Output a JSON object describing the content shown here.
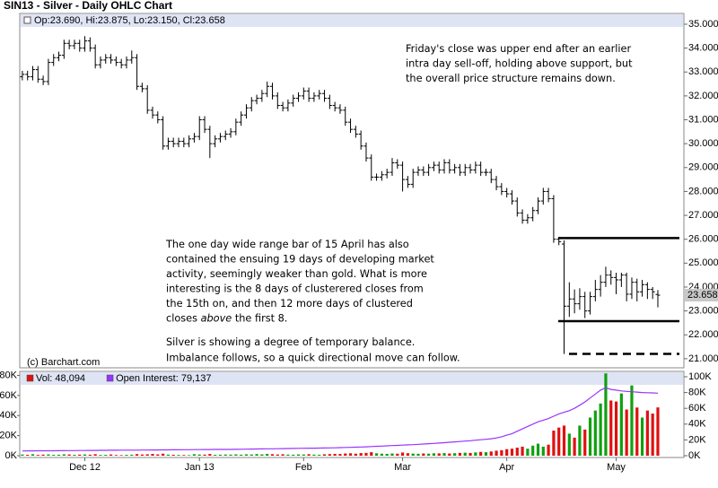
{
  "chart_data": [
    {
      "type": "ohlc",
      "title": "SIN13 - Silver - Daily OHLC Chart",
      "header_text": "Op:23.690, Hi:23.875, Lo:23.150, Cl:23.658",
      "credit": "(c) Barchart.com",
      "color": "#000000",
      "xlim": [
        -0.5,
        127
      ],
      "ylim": [
        20.62,
        35.45
      ],
      "yticks": [
        {
          "value": 21,
          "label": "21.000"
        },
        {
          "value": 22,
          "label": "22.000"
        },
        {
          "value": 23,
          "label": "23.000"
        },
        {
          "value": 24,
          "label": "24.000"
        },
        {
          "value": 25,
          "label": "25.000"
        },
        {
          "value": 26,
          "label": "26.000"
        },
        {
          "value": 27,
          "label": "27.000"
        },
        {
          "value": 28,
          "label": "28.000"
        },
        {
          "value": 29,
          "label": "29.000"
        },
        {
          "value": 30,
          "label": "30.000"
        },
        {
          "value": 31,
          "label": "31.000"
        },
        {
          "value": 32,
          "label": "32.000"
        },
        {
          "value": 33,
          "label": "33.000"
        },
        {
          "value": 34,
          "label": "34.000"
        },
        {
          "value": 35,
          "label": "35.000"
        }
      ],
      "grid": false,
      "open": [
        32.8,
        32.9,
        32.8,
        33.1,
        32.7,
        32.6,
        33.4,
        33.6,
        33.7,
        34.2,
        34.1,
        34.2,
        34.0,
        34.3,
        34.0,
        33.3,
        33.5,
        33.6,
        33.5,
        33.4,
        33.3,
        33.5,
        33.6,
        32.4,
        32.3,
        31.4,
        31.2,
        31.0,
        29.9,
        30.1,
        30.0,
        30.1,
        30.0,
        30.2,
        30.3,
        31.0,
        30.6,
        30.0,
        30.2,
        30.3,
        30.4,
        30.5,
        30.9,
        31.2,
        31.5,
        31.8,
        31.9,
        32.1,
        32.4,
        32.0,
        31.6,
        31.5,
        31.7,
        31.9,
        32.0,
        32.2,
        31.9,
        32.0,
        32.1,
        31.9,
        31.6,
        31.5,
        31.4,
        30.9,
        30.6,
        30.4,
        29.9,
        29.4,
        28.6,
        28.6,
        28.7,
        28.8,
        29.2,
        29.1,
        28.5,
        28.3,
        28.8,
        28.9,
        28.8,
        29.0,
        29.1,
        28.9,
        29.2,
        28.9,
        29.0,
        28.8,
        29.0,
        28.9,
        29.1,
        28.8,
        28.8,
        28.5,
        28.2,
        28.0,
        27.9,
        27.6,
        27.1,
        26.8,
        26.9,
        27.2,
        27.6,
        28.0,
        27.7,
        26.0,
        25.8,
        23.2,
        23.5,
        23.3,
        23.6,
        23.0,
        23.6,
        23.9,
        24.2,
        24.5,
        24.4,
        24.3,
        24.5,
        23.7,
        24.2,
        23.8,
        24.1,
        23.9,
        23.69
      ],
      "high": [
        33.05,
        33.05,
        33.25,
        33.25,
        32.85,
        33.55,
        33.75,
        33.85,
        34.35,
        34.35,
        34.35,
        34.35,
        34.5,
        34.45,
        34.15,
        33.65,
        33.75,
        33.75,
        33.65,
        33.55,
        33.65,
        33.9,
        33.75,
        32.55,
        32.45,
        31.55,
        31.35,
        31.15,
        30.25,
        30.25,
        30.25,
        30.25,
        30.35,
        30.45,
        31.15,
        31.15,
        30.75,
        30.35,
        30.45,
        30.55,
        30.65,
        31.05,
        31.35,
        31.65,
        31.95,
        32.05,
        32.25,
        32.6,
        32.55,
        32.15,
        31.75,
        31.85,
        32.05,
        32.15,
        32.35,
        32.35,
        32.15,
        32.25,
        32.25,
        32.05,
        31.75,
        31.65,
        31.55,
        31.05,
        30.75,
        30.55,
        30.05,
        29.55,
        28.75,
        28.85,
        28.95,
        29.4,
        29.35,
        29.25,
        28.65,
        28.95,
        29.05,
        29.05,
        29.15,
        29.25,
        29.25,
        29.35,
        29.35,
        29.15,
        29.15,
        29.15,
        29.15,
        29.25,
        29.25,
        28.95,
        28.95,
        28.65,
        28.35,
        28.15,
        28.05,
        27.75,
        27.25,
        27.05,
        27.35,
        27.75,
        28.15,
        28.15,
        27.85,
        26.1,
        25.95,
        24.2,
        23.9,
        23.95,
        23.8,
        23.8,
        24.3,
        24.5,
        24.85,
        24.7,
        24.6,
        24.6,
        24.6,
        24.4,
        24.35,
        24.3,
        24.2,
        24.0,
        23.875
      ],
      "low": [
        32.65,
        32.65,
        32.65,
        32.55,
        32.45,
        32.45,
        33.25,
        33.45,
        33.55,
        33.95,
        33.95,
        33.85,
        33.85,
        33.85,
        33.15,
        33.15,
        33.35,
        33.35,
        33.25,
        33.15,
        33.15,
        33.35,
        32.25,
        32.15,
        31.25,
        31.05,
        30.85,
        29.75,
        29.75,
        29.85,
        29.85,
        29.85,
        29.85,
        30.05,
        30.15,
        30.45,
        29.4,
        29.85,
        30.05,
        30.15,
        30.25,
        30.35,
        30.75,
        31.05,
        31.35,
        31.65,
        31.75,
        31.95,
        31.85,
        31.45,
        31.35,
        31.35,
        31.55,
        31.75,
        31.85,
        31.75,
        31.75,
        31.85,
        31.75,
        31.45,
        31.35,
        31.25,
        30.75,
        30.45,
        30.25,
        29.75,
        29.25,
        28.45,
        28.45,
        28.45,
        28.55,
        28.65,
        28.95,
        28.0,
        28.15,
        28.15,
        28.65,
        28.65,
        28.65,
        28.85,
        28.75,
        28.75,
        28.75,
        28.75,
        28.65,
        28.65,
        28.75,
        28.75,
        28.65,
        28.65,
        28.35,
        28.05,
        27.85,
        27.75,
        27.45,
        26.95,
        26.65,
        26.65,
        26.75,
        27.05,
        27.45,
        27.55,
        25.85,
        25.75,
        21.2,
        22.75,
        22.9,
        23.05,
        22.7,
        22.85,
        23.4,
        23.6,
        24.0,
        24.1,
        23.7,
        24.0,
        23.4,
        23.5,
        23.4,
        23.6,
        23.5,
        23.5,
        23.15
      ],
      "close": [
        32.9,
        32.8,
        33.1,
        32.7,
        32.6,
        33.4,
        33.6,
        33.7,
        34.2,
        34.1,
        34.2,
        34.0,
        34.3,
        34.0,
        33.3,
        33.5,
        33.6,
        33.5,
        33.4,
        33.3,
        33.5,
        33.6,
        32.4,
        32.3,
        31.4,
        31.2,
        31.0,
        29.9,
        30.1,
        30.0,
        30.1,
        30.0,
        30.2,
        30.3,
        31.0,
        30.6,
        30.0,
        30.2,
        30.3,
        30.4,
        30.5,
        30.9,
        31.2,
        31.5,
        31.8,
        31.9,
        32.1,
        32.4,
        32.0,
        31.6,
        31.5,
        31.7,
        31.9,
        32.0,
        32.2,
        31.9,
        32.0,
        32.1,
        31.9,
        31.6,
        31.5,
        31.4,
        30.9,
        30.6,
        30.4,
        29.9,
        29.4,
        28.6,
        28.6,
        28.7,
        28.8,
        29.2,
        29.1,
        28.5,
        28.3,
        28.8,
        28.9,
        28.8,
        29.0,
        29.1,
        28.9,
        29.2,
        28.9,
        29.0,
        28.8,
        29.0,
        28.9,
        29.1,
        28.8,
        28.8,
        28.5,
        28.2,
        28.0,
        27.9,
        27.6,
        27.1,
        26.8,
        26.9,
        27.2,
        27.6,
        28.0,
        27.7,
        26.0,
        25.9,
        23.2,
        23.5,
        23.3,
        23.6,
        23.0,
        23.6,
        23.9,
        24.2,
        24.5,
        24.4,
        24.3,
        24.5,
        23.7,
        24.2,
        23.8,
        24.1,
        23.9,
        23.8,
        23.658
      ],
      "levels": [
        {
          "value": 26.05,
          "dashed": false
        },
        {
          "value": 22.57,
          "dashed": false
        },
        {
          "value": 21.2,
          "dashed": true
        }
      ],
      "annotations": [
        {
          "lines": [
            "Friday's close was upper end after an earlier",
            "intra day sell-off, holding above support, but",
            "the overall price structure remains down."
          ]
        },
        {
          "lines": [
            "The one day wide range bar of 15 April has also",
            "contained the ensuing 19 days of developing market",
            "activity, seemingly weaker than gold.  What is more",
            "interesting is the 8 days of clusterered closes from",
            "the 15th on, and then 12 more days of clustered",
            [
              {
                "text": "closes "
              },
              {
                "text": "above",
                "italic": true
              },
              {
                "text": " the first 8."
              }
            ]
          ]
        },
        {
          "lines": [
            "Silver is showing a degree of temporary balance.",
            "Imbalance follows, so a quick directional move can follow."
          ]
        }
      ]
    },
    {
      "type": "bar",
      "xlim": [
        -0.5,
        127
      ],
      "xticks": [
        {
          "value": 12,
          "label": "Dec 12"
        },
        {
          "value": 34,
          "label": "Jan 13"
        },
        {
          "value": 54,
          "label": "Feb"
        },
        {
          "value": 73,
          "label": "Mar"
        },
        {
          "value": 93,
          "label": "Apr"
        },
        {
          "value": 114,
          "label": "May"
        }
      ],
      "ylim": [
        0,
        84000
      ],
      "yticks": [
        {
          "value": 0,
          "label": "0K"
        },
        {
          "value": 20000,
          "label": "20K"
        },
        {
          "value": 40000,
          "label": "40K"
        },
        {
          "value": 60000,
          "label": "60K"
        },
        {
          "value": 80000,
          "label": "80K"
        }
      ],
      "y2lim": [
        0,
        106800
      ],
      "y2ticks": [
        {
          "value": 0,
          "label": "0K"
        },
        {
          "value": 20000,
          "label": "20K"
        },
        {
          "value": 40000,
          "label": "40K"
        },
        {
          "value": 60000,
          "label": "60K"
        },
        {
          "value": 80000,
          "label": "80K"
        },
        {
          "value": 100000,
          "label": "100K"
        }
      ],
      "series": [
        {
          "name": "Vol: 48,094",
          "color": "#e01010",
          "up_color": "#10a010",
          "values": [
            1200,
            900,
            1500,
            800,
            1100,
            1300,
            900,
            1000,
            1400,
            1200,
            900,
            1100,
            1300,
            1000,
            1500,
            800,
            900,
            1200,
            700,
            600,
            900,
            1000,
            1600,
            1200,
            1400,
            1800,
            1300,
            2000,
            1100,
            900,
            800,
            700,
            600,
            1500,
            1200,
            1100,
            1700,
            900,
            1000,
            1200,
            1100,
            1300,
            1000,
            1400,
            1200,
            1600,
            1300,
            1800,
            1500,
            1200,
            1400,
            1100,
            1000,
            1300,
            1200,
            1500,
            1100,
            1000,
            1400,
            1600,
            1800,
            1700,
            2200,
            2400,
            2000,
            2600,
            2800,
            3500,
            2400,
            2000,
            1800,
            2200,
            2000,
            3200,
            2500,
            2100,
            1900,
            2200,
            2000,
            2400,
            2300,
            2600,
            2200,
            2500,
            2800,
            3000,
            2700,
            3300,
            3800,
            3500,
            4200,
            5000,
            5500,
            6500,
            7000,
            8000,
            9000,
            7000,
            10000,
            12000,
            9000,
            11000,
            25000,
            28000,
            30000,
            22000,
            18000,
            30000,
            26000,
            38000,
            45000,
            52000,
            82000,
            55000,
            54000,
            62000,
            46000,
            70000,
            48000,
            38000,
            45000,
            42000,
            48094
          ]
        },
        {
          "name": "Open Interest: 79,137",
          "color": "#9933ff",
          "axis": "y2",
          "type": "line",
          "values": [
            6000,
            6100,
            6100,
            6200,
            6200,
            6300,
            6300,
            6400,
            6400,
            6500,
            6500,
            6600,
            6600,
            6700,
            6700,
            6800,
            6800,
            6900,
            6900,
            7000,
            7000,
            7100,
            7100,
            7200,
            7200,
            7300,
            7300,
            7400,
            7400,
            7500,
            7500,
            7600,
            7600,
            7700,
            7700,
            7800,
            7800,
            7900,
            7900,
            8000,
            8000,
            8100,
            8200,
            8300,
            8400,
            8500,
            8600,
            8700,
            8800,
            8900,
            9000,
            9100,
            9200,
            9300,
            9400,
            9500,
            9600,
            9700,
            9800,
            9900,
            10000,
            10200,
            10400,
            10600,
            10800,
            11000,
            11300,
            11600,
            11900,
            12200,
            12500,
            12800,
            13100,
            13400,
            13700,
            14000,
            14400,
            14800,
            15200,
            15600,
            16000,
            16500,
            17000,
            17500,
            18000,
            18500,
            19000,
            19600,
            20200,
            20800,
            21500,
            22500,
            24000,
            26000,
            28000,
            31000,
            34000,
            37000,
            40000,
            43000,
            45000,
            47000,
            50000,
            53000,
            55000,
            57000,
            60000,
            64000,
            68000,
            73000,
            78000,
            83000,
            86000,
            84000,
            83000,
            82000,
            81500,
            81000,
            80500,
            80000,
            79800,
            79500,
            79137
          ]
        }
      ]
    }
  ]
}
